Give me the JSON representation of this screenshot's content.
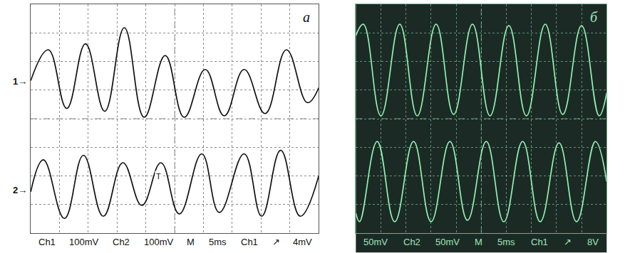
{
  "chart_data": [
    {
      "type": "line",
      "title": "а",
      "color": "#111111",
      "caption": [
        "Ch1",
        "100mV",
        "Ch2",
        "100mV",
        "M",
        "5ms",
        "Ch1",
        "↗",
        "4mV"
      ],
      "xlim": [
        0,
        10
      ],
      "ylim": [
        -4,
        4
      ],
      "xticks": [
        0,
        1,
        2,
        3,
        4,
        5,
        6,
        7,
        8,
        9,
        10
      ],
      "yticks": [
        -4,
        -3,
        -2,
        -1,
        0,
        1,
        2,
        3,
        4
      ],
      "grid": true,
      "tick_labels": false,
      "annotations": [
        {
          "text": "T",
          "x": 4.45,
          "y": -2.0
        }
      ],
      "series": [
        {
          "name": "1→",
          "baseline": 1.3,
          "x": [
            0,
            0.61,
            1.25,
            1.9,
            2.57,
            3.25,
            3.94,
            4.67,
            5.33,
            6.06,
            6.72,
            7.41,
            8.14,
            8.88,
            9.61,
            10
          ],
          "values": [
            1.33,
            2.41,
            0.36,
            2.62,
            0.26,
            3.18,
            0.05,
            2.21,
            0.05,
            1.72,
            0.1,
            1.72,
            0.18,
            2.41,
            0.56,
            1.08
          ]
        },
        {
          "name": "2→",
          "baseline": -2.5,
          "x": [
            0,
            0.44,
            1.17,
            1.83,
            2.52,
            3.2,
            3.86,
            4.52,
            5.16,
            5.94,
            6.55,
            7.41,
            8.02,
            8.68,
            9.36,
            10
          ],
          "values": [
            -2.56,
            -1.44,
            -3.49,
            -1.28,
            -3.41,
            -1.54,
            -3.03,
            -1.54,
            -3.33,
            -1.23,
            -3.28,
            -1.23,
            -3.41,
            -1.1,
            -3.41,
            -2.0
          ]
        }
      ]
    },
    {
      "type": "line",
      "title": "б",
      "color": "#8ff2b0",
      "caption": [
        "50mV",
        "Ch2",
        "50mV",
        "M",
        "5ms",
        "Ch1",
        "↗",
        "8V"
      ],
      "xlim": [
        0,
        10
      ],
      "ylim": [
        -4,
        4
      ],
      "xticks": [
        0,
        1,
        2,
        3,
        4,
        5,
        6,
        7,
        8,
        9,
        10
      ],
      "yticks": [
        -4,
        -3,
        -2,
        -1,
        0,
        1,
        2,
        3,
        4
      ],
      "grid": true,
      "tick_labels": false,
      "series": [
        {
          "x": [
            0,
            0.3,
            1.0,
            1.75,
            2.45,
            3.2,
            3.9,
            4.65,
            5.35,
            6.1,
            6.8,
            7.55,
            8.25,
            9.0,
            9.7,
            10
          ],
          "values": [
            2.9,
            3.3,
            0.1,
            3.3,
            0.1,
            3.3,
            0.15,
            3.3,
            0.1,
            3.25,
            0.1,
            3.3,
            0.15,
            3.25,
            0.1,
            0.9
          ]
        },
        {
          "x": [
            0,
            0.15,
            0.85,
            1.55,
            2.3,
            3.0,
            3.75,
            4.45,
            5.2,
            5.9,
            6.65,
            7.35,
            8.1,
            8.8,
            9.55,
            10
          ],
          "values": [
            -3.3,
            -3.6,
            -0.8,
            -3.6,
            -0.8,
            -3.6,
            -0.8,
            -3.55,
            -0.8,
            -3.6,
            -0.8,
            -3.6,
            -0.85,
            -3.6,
            -0.8,
            -2.2
          ]
        }
      ]
    }
  ]
}
